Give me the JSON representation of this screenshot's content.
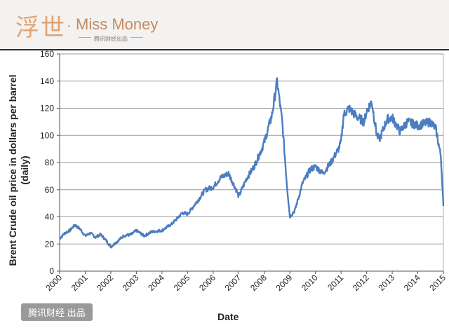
{
  "banner": {
    "brand_cn": "浮世",
    "brand_dot": "·",
    "brand_en": "Miss Money",
    "brand_sub": "腾讯财经出品"
  },
  "watermark": "腾讯财经 出品",
  "colors": {
    "line": "#4a7ec0",
    "grid": "#9a9a9a",
    "axis": "#555555"
  },
  "chart_data": {
    "type": "line",
    "title": "",
    "xlabel": "Date",
    "ylabel": "Brent Crude oil price in dollars per barrel (daily)",
    "ylim": [
      0,
      160
    ],
    "yticks": [
      0,
      20,
      40,
      60,
      80,
      100,
      120,
      140,
      160
    ],
    "xlim": [
      2000,
      2015
    ],
    "xticks": [
      "2000",
      "2001",
      "2002",
      "2003",
      "2004",
      "2005",
      "2006",
      "2007",
      "2008",
      "2009",
      "2010",
      "2011",
      "2012",
      "2013",
      "2014",
      "2015"
    ],
    "grid": "horizontal",
    "series": [
      {
        "name": "",
        "x": [
          2000.0,
          2000.2,
          2000.4,
          2000.6,
          2000.8,
          2001.0,
          2001.2,
          2001.4,
          2001.6,
          2001.8,
          2002.0,
          2002.2,
          2002.5,
          2002.8,
          2003.0,
          2003.3,
          2003.6,
          2004.0,
          2004.4,
          2004.8,
          2005.0,
          2005.4,
          2005.7,
          2006.0,
          2006.3,
          2006.6,
          2006.9,
          2007.0,
          2007.3,
          2007.6,
          2007.9,
          2008.0,
          2008.3,
          2008.5,
          2008.7,
          2008.9,
          2009.0,
          2009.2,
          2009.5,
          2009.8,
          2010.0,
          2010.3,
          2010.6,
          2010.9,
          2011.0,
          2011.1,
          2011.3,
          2011.6,
          2011.9,
          2012.0,
          2012.2,
          2012.4,
          2012.5,
          2012.8,
          2013.0,
          2013.3,
          2013.6,
          2013.9,
          2014.0,
          2014.3,
          2014.5,
          2014.7,
          2014.9,
          2015.0
        ],
        "values": [
          24,
          28,
          30,
          34,
          31,
          26,
          28,
          25,
          27,
          23,
          18,
          21,
          26,
          27,
          30,
          26,
          29,
          30,
          35,
          43,
          42,
          52,
          60,
          62,
          69,
          72,
          60,
          55,
          68,
          77,
          90,
          95,
          115,
          140,
          110,
          60,
          40,
          45,
          65,
          75,
          77,
          72,
          80,
          90,
          95,
          115,
          120,
          114,
          110,
          118,
          125,
          100,
          97,
          112,
          113,
          103,
          110,
          108,
          107,
          109,
          110,
          105,
          85,
          48
        ]
      }
    ]
  }
}
